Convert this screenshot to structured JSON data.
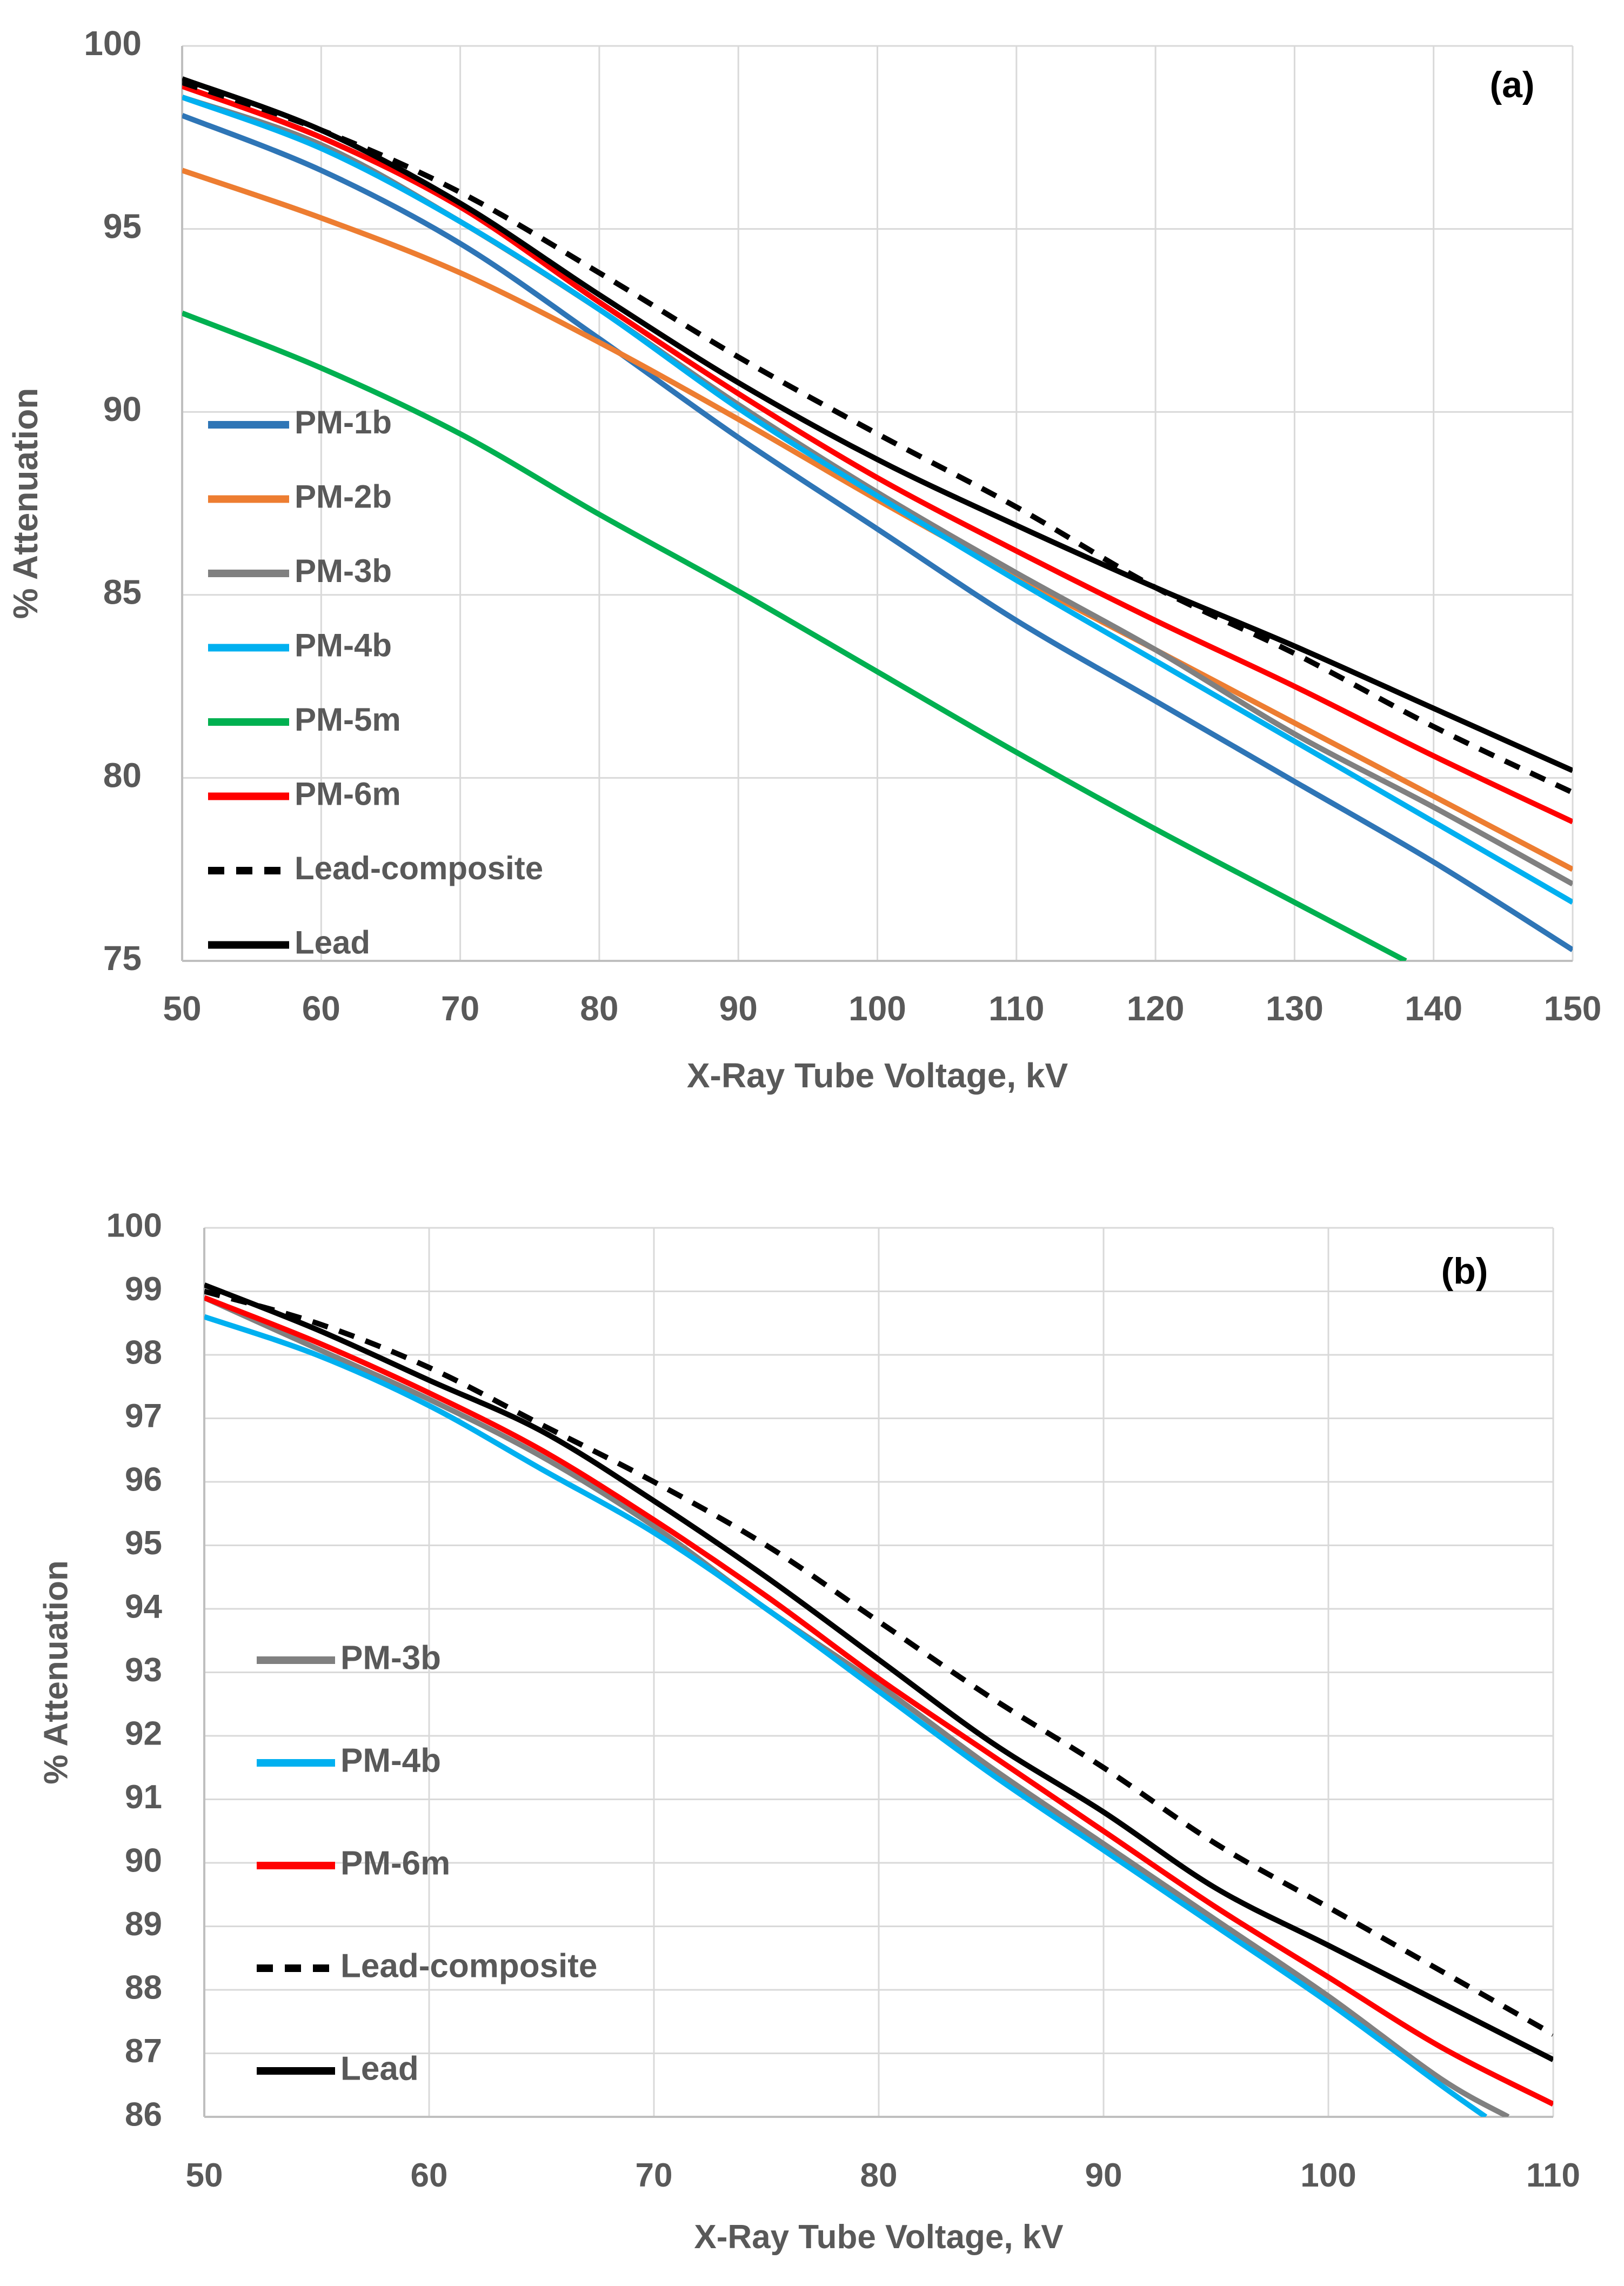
{
  "chart_data": [
    {
      "type": "line",
      "panel_label": "(a)",
      "title": "",
      "xlabel": "X-Ray Tube Voltage, kV",
      "ylabel": "% Attenuation",
      "xlim": [
        50,
        150
      ],
      "ylim": [
        75,
        100
      ],
      "xticks": [
        50,
        60,
        70,
        80,
        90,
        100,
        110,
        120,
        130,
        140,
        150
      ],
      "yticks": [
        75,
        80,
        85,
        90,
        95,
        100
      ],
      "grid": true,
      "legend": "left",
      "series": [
        {
          "name": "PM-1b",
          "color": "#2E75B6",
          "dash": false,
          "x": [
            50,
            60,
            70,
            80,
            90,
            100,
            110,
            120,
            130,
            140,
            150
          ],
          "values": [
            98.1,
            96.6,
            94.6,
            92.0,
            89.3,
            86.8,
            84.3,
            82.1,
            79.9,
            77.7,
            75.3
          ]
        },
        {
          "name": "PM-2b",
          "color": "#ED7D31",
          "dash": false,
          "x": [
            50,
            60,
            70,
            80,
            90,
            100,
            110,
            120,
            130,
            140,
            150
          ],
          "values": [
            96.6,
            95.3,
            93.8,
            91.9,
            89.8,
            87.6,
            85.5,
            83.5,
            81.5,
            79.5,
            77.5
          ]
        },
        {
          "name": "PM-3b",
          "color": "#808080",
          "dash": false,
          "x": [
            50,
            60,
            70,
            80,
            90,
            100,
            110,
            120,
            130,
            140,
            150
          ],
          "values": [
            98.6,
            97.3,
            95.2,
            92.8,
            90.2,
            87.8,
            85.6,
            83.5,
            81.2,
            79.2,
            77.1
          ]
        },
        {
          "name": "PM-4b",
          "color": "#00B0F0",
          "dash": false,
          "x": [
            50,
            60,
            70,
            80,
            90,
            100,
            110,
            120,
            130,
            140,
            150
          ],
          "values": [
            98.6,
            97.2,
            95.2,
            92.8,
            90.1,
            87.7,
            85.4,
            83.2,
            81.0,
            78.8,
            76.6
          ]
        },
        {
          "name": "PM-5m",
          "color": "#00B050",
          "dash": false,
          "x": [
            50,
            60,
            70,
            80,
            90,
            100,
            110,
            120,
            130,
            138
          ],
          "values": [
            92.7,
            91.2,
            89.4,
            87.2,
            85.1,
            82.9,
            80.7,
            78.6,
            76.6,
            75.0
          ]
        },
        {
          "name": "PM-6m",
          "color": "#FF0000",
          "dash": false,
          "x": [
            50,
            60,
            70,
            80,
            90,
            100,
            110,
            120,
            130,
            140,
            150
          ],
          "values": [
            98.9,
            97.5,
            95.6,
            93.0,
            90.5,
            88.2,
            86.2,
            84.3,
            82.5,
            80.6,
            78.8
          ]
        },
        {
          "name": "Lead-composite",
          "color": "#000000",
          "dash": true,
          "x": [
            50,
            60,
            70,
            80,
            90,
            100,
            110,
            120,
            130,
            140,
            150
          ],
          "values": [
            99.0,
            97.7,
            96.0,
            93.8,
            91.5,
            89.4,
            87.4,
            85.2,
            83.4,
            81.4,
            79.6
          ]
        },
        {
          "name": "Lead",
          "color": "#000000",
          "dash": false,
          "x": [
            50,
            60,
            70,
            80,
            90,
            100,
            110,
            120,
            130,
            140,
            150
          ],
          "values": [
            99.1,
            97.7,
            95.7,
            93.2,
            90.8,
            88.7,
            86.9,
            85.2,
            83.6,
            81.9,
            80.2
          ]
        }
      ]
    },
    {
      "type": "line",
      "panel_label": "(b)",
      "title": "",
      "xlabel": "X-Ray Tube Voltage, kV",
      "ylabel": "% Attenuation",
      "xlim": [
        50,
        110
      ],
      "ylim": [
        86,
        100
      ],
      "xticks": [
        50,
        60,
        70,
        80,
        90,
        100,
        110
      ],
      "yticks": [
        86,
        87,
        88,
        89,
        90,
        91,
        92,
        93,
        94,
        95,
        96,
        97,
        98,
        99,
        100
      ],
      "grid": true,
      "legend": "left",
      "series": [
        {
          "name": "PM-3b",
          "color": "#808080",
          "dash": false,
          "x": [
            50,
            55,
            60,
            65,
            70,
            75,
            80,
            85,
            90,
            95,
            100,
            105,
            108
          ],
          "values": [
            98.9,
            98.1,
            97.3,
            96.4,
            95.3,
            94.0,
            92.8,
            91.5,
            90.3,
            89.1,
            87.9,
            86.6,
            86.0
          ]
        },
        {
          "name": "PM-4b",
          "color": "#00B0F0",
          "dash": false,
          "x": [
            50,
            55,
            60,
            65,
            70,
            75,
            80,
            85,
            90,
            95,
            100,
            105,
            107
          ],
          "values": [
            98.6,
            98.0,
            97.2,
            96.2,
            95.2,
            94.0,
            92.7,
            91.4,
            90.2,
            89.0,
            87.8,
            86.5,
            86.0
          ]
        },
        {
          "name": "PM-6m",
          "color": "#FF0000",
          "dash": false,
          "x": [
            50,
            55,
            60,
            65,
            70,
            75,
            80,
            85,
            90,
            95,
            100,
            105,
            110
          ],
          "values": [
            98.9,
            98.2,
            97.4,
            96.5,
            95.4,
            94.2,
            92.9,
            91.7,
            90.5,
            89.3,
            88.2,
            87.1,
            86.2
          ]
        },
        {
          "name": "Lead-composite",
          "color": "#000000",
          "dash": true,
          "x": [
            50,
            55,
            60,
            65,
            70,
            75,
            80,
            85,
            90,
            95,
            100,
            105,
            110
          ],
          "values": [
            99.0,
            98.5,
            97.8,
            96.9,
            96.0,
            95.0,
            93.8,
            92.6,
            91.5,
            90.3,
            89.3,
            88.3,
            87.3
          ]
        },
        {
          "name": "Lead",
          "color": "#000000",
          "dash": false,
          "x": [
            50,
            55,
            60,
            65,
            70,
            75,
            80,
            85,
            90,
            95,
            100,
            105,
            110
          ],
          "values": [
            99.1,
            98.4,
            97.6,
            96.8,
            95.7,
            94.5,
            93.2,
            91.9,
            90.8,
            89.6,
            88.7,
            87.8,
            86.9
          ]
        }
      ]
    }
  ]
}
